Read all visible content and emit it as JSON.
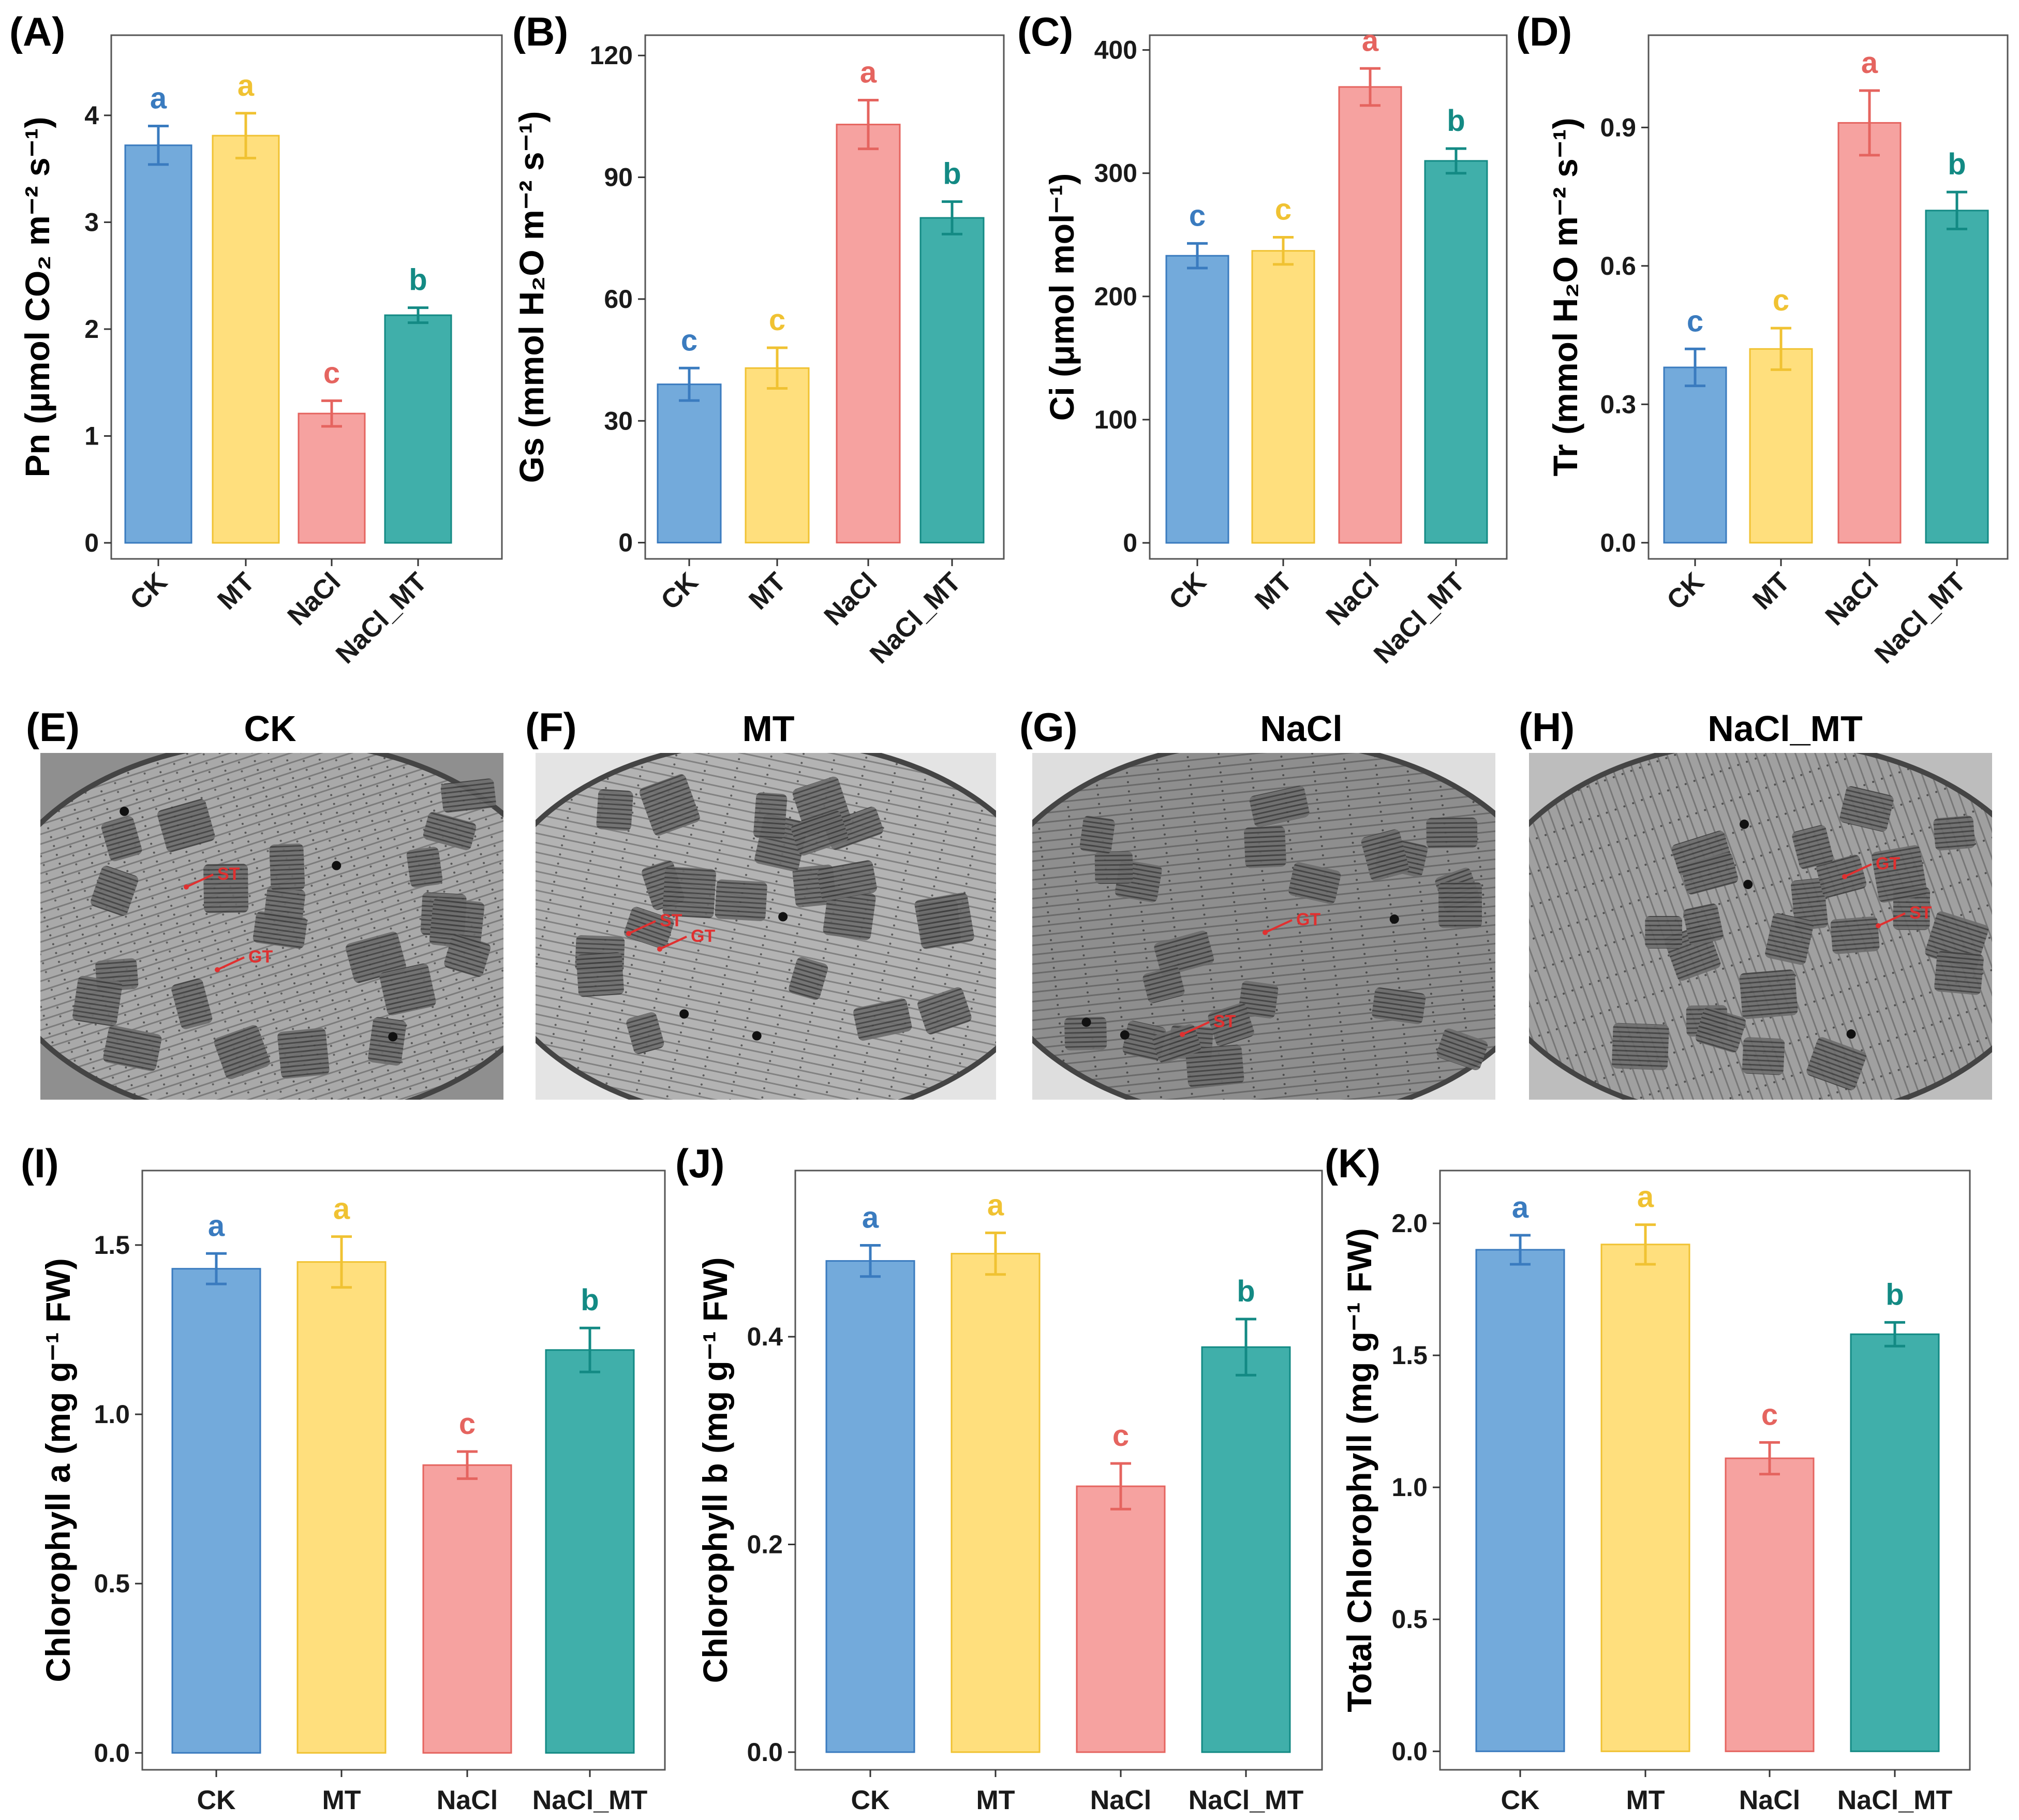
{
  "colors": {
    "CK": "#5b9bd5",
    "MT": "#ffd966",
    "NaCl": "#f4928f",
    "NaCl_MT": "#1fa19b",
    "CK_dark": "#3a7bbf",
    "MT_dark": "#f0c232",
    "NaCl_dark": "#e5645f",
    "NaCl_MT_dark": "#138a84"
  },
  "chart_data": [
    {
      "id": "A",
      "panel_label": "(A)",
      "type": "bar",
      "categories": [
        "CK",
        "MT",
        "NaCl",
        "NaCl_MT"
      ],
      "ylabel": "Pn (μmol CO₂ m⁻² s⁻¹)",
      "ylim": [
        -0.15,
        4.75
      ],
      "yticks": [
        0,
        1,
        2,
        3,
        4
      ],
      "ytick_labels": [
        "0",
        "1",
        "2",
        "3",
        "4"
      ],
      "values": [
        3.72,
        3.81,
        1.21,
        2.13
      ],
      "errors": [
        0.18,
        0.21,
        0.12,
        0.07
      ],
      "letters": [
        "a",
        "a",
        "c",
        "b"
      ],
      "rotate_x": true
    },
    {
      "id": "B",
      "panel_label": "(B)",
      "type": "bar",
      "categories": [
        "CK",
        "MT",
        "NaCl",
        "NaCl_MT"
      ],
      "ylabel": "Gs (mmol H₂O m⁻² s⁻¹)",
      "ylim": [
        -4,
        125
      ],
      "yticks": [
        0,
        30,
        60,
        90,
        120
      ],
      "ytick_labels": [
        "0",
        "30",
        "60",
        "90",
        "120"
      ],
      "values": [
        39,
        43,
        103,
        80
      ],
      "errors": [
        4,
        5,
        6,
        4
      ],
      "letters": [
        "c",
        "c",
        "a",
        "b"
      ],
      "rotate_x": true
    },
    {
      "id": "C",
      "panel_label": "(C)",
      "type": "bar",
      "categories": [
        "CK",
        "MT",
        "NaCl",
        "NaCl_MT"
      ],
      "ylabel": "Ci (μmol mol⁻¹)",
      "ylim": [
        -13,
        412
      ],
      "yticks": [
        0,
        100,
        200,
        300,
        400
      ],
      "ytick_labels": [
        "0",
        "100",
        "200",
        "300",
        "400"
      ],
      "values": [
        233,
        237,
        370,
        310
      ],
      "errors": [
        10,
        11,
        15,
        10
      ],
      "letters": [
        "c",
        "c",
        "a",
        "b"
      ],
      "rotate_x": true
    },
    {
      "id": "D",
      "panel_label": "(D)",
      "type": "bar",
      "categories": [
        "CK",
        "MT",
        "NaCl",
        "NaCl_MT"
      ],
      "ylabel": "Tr (mmol H₂O m⁻² s⁻¹)",
      "ylim": [
        -0.035,
        1.1
      ],
      "yticks": [
        0.0,
        0.3,
        0.6,
        0.9
      ],
      "ytick_labels": [
        "0.0",
        "0.3",
        "0.6",
        "0.9"
      ],
      "values": [
        0.38,
        0.42,
        0.91,
        0.72
      ],
      "errors": [
        0.04,
        0.045,
        0.07,
        0.04
      ],
      "letters": [
        "c",
        "c",
        "a",
        "b"
      ],
      "rotate_x": true
    },
    {
      "id": "I",
      "panel_label": "(I)",
      "type": "bar",
      "categories": [
        "CK",
        "MT",
        "NaCl",
        "NaCl_MT"
      ],
      "ylabel": "Chlorophyll a (mg g⁻¹ FW)",
      "ylim": [
        -0.05,
        1.72
      ],
      "yticks": [
        0.0,
        0.5,
        1.0,
        1.5
      ],
      "ytick_labels": [
        "0.0",
        "0.5",
        "1.0",
        "1.5"
      ],
      "values": [
        1.43,
        1.45,
        0.85,
        1.19
      ],
      "errors": [
        0.045,
        0.075,
        0.04,
        0.065
      ],
      "letters": [
        "a",
        "a",
        "c",
        "b"
      ],
      "rotate_x": false
    },
    {
      "id": "J",
      "panel_label": "(J)",
      "type": "bar",
      "categories": [
        "CK",
        "MT",
        "NaCl",
        "NaCl_MT"
      ],
      "ylabel": "Chlorophyll b (mg g⁻¹ FW)",
      "ylim": [
        -0.017,
        0.56
      ],
      "yticks": [
        0.0,
        0.2,
        0.4
      ],
      "ytick_labels": [
        "0.0",
        "0.2",
        "0.4"
      ],
      "values": [
        0.473,
        0.48,
        0.256,
        0.39
      ],
      "errors": [
        0.015,
        0.02,
        0.022,
        0.027
      ],
      "letters": [
        "a",
        "a",
        "c",
        "b"
      ],
      "rotate_x": false
    },
    {
      "id": "K",
      "panel_label": "(K)",
      "type": "bar",
      "categories": [
        "CK",
        "MT",
        "NaCl",
        "NaCl_MT"
      ],
      "ylabel": "Total Chlorophyll (mg g⁻¹ FW)",
      "ylim": [
        -0.07,
        2.2
      ],
      "yticks": [
        0.0,
        0.5,
        1.0,
        1.5,
        2.0
      ],
      "ytick_labels": [
        "0.0",
        "0.5",
        "1.0",
        "1.5",
        "2.0"
      ],
      "values": [
        1.9,
        1.92,
        1.11,
        1.58
      ],
      "errors": [
        0.055,
        0.075,
        0.06,
        0.045
      ],
      "letters": [
        "a",
        "a",
        "c",
        "b"
      ],
      "rotate_x": false
    }
  ],
  "micrographs": [
    {
      "id": "E",
      "panel_label": "(E)",
      "title": "CK",
      "annotations": [
        "ST",
        "GT"
      ]
    },
    {
      "id": "F",
      "panel_label": "(F)",
      "title": "MT",
      "annotations": [
        "ST",
        "GT"
      ]
    },
    {
      "id": "G",
      "panel_label": "(G)",
      "title": "NaCl",
      "annotations": [
        "GT",
        "ST"
      ]
    },
    {
      "id": "H",
      "panel_label": "(H)",
      "title": "NaCl_MT",
      "annotations": [
        "GT",
        "ST"
      ]
    }
  ]
}
